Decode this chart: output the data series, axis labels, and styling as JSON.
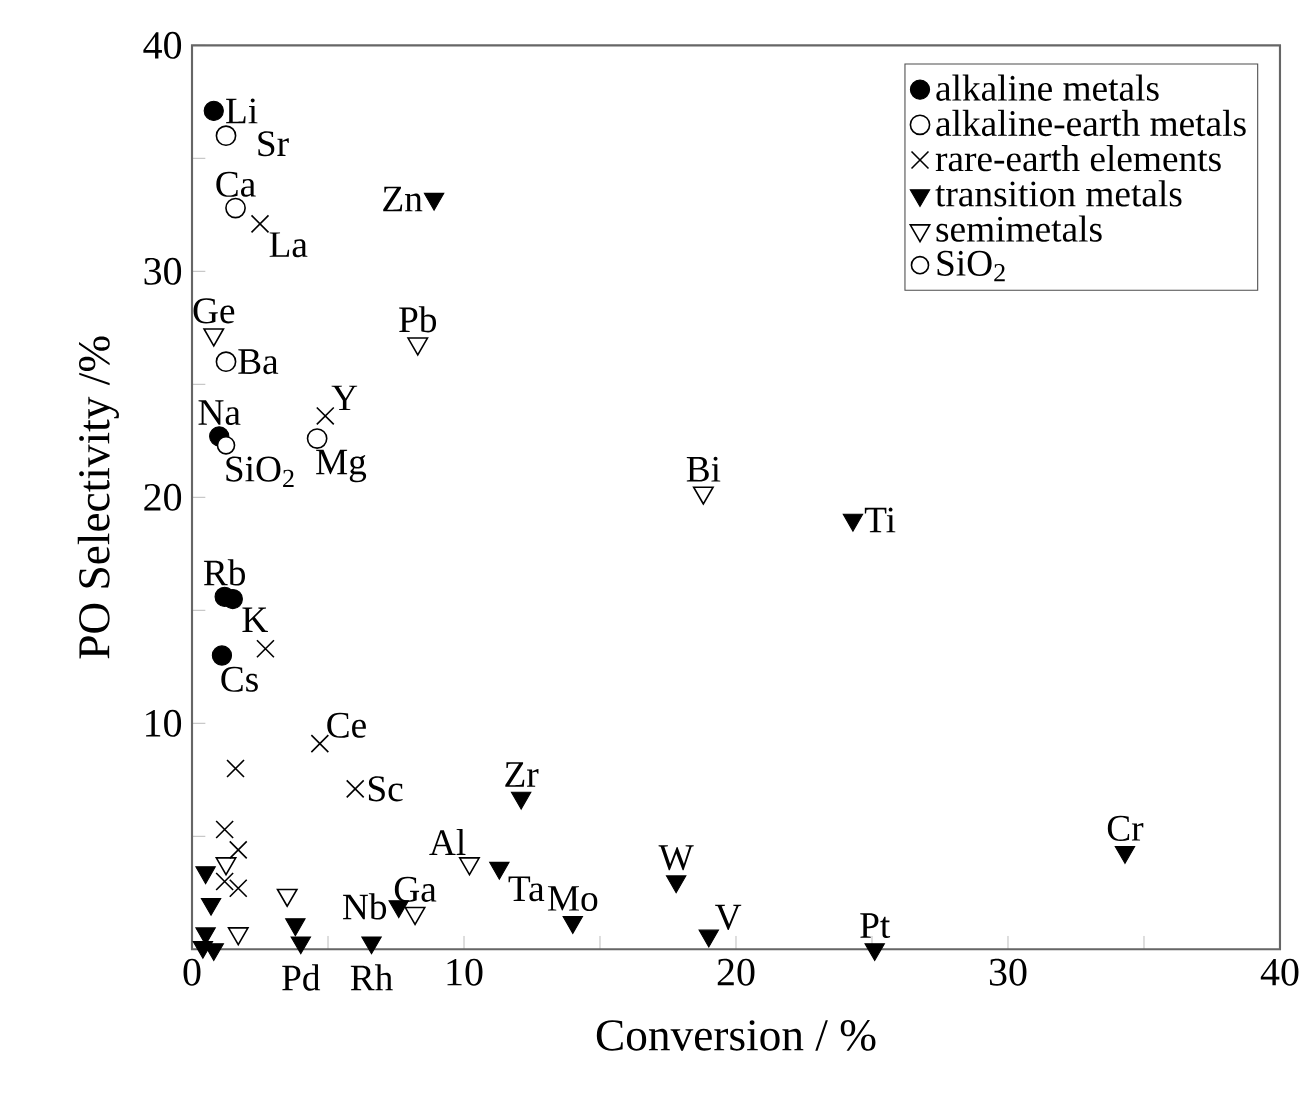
{
  "chart_data": {
    "type": "scatter",
    "xlabel": "Conversion / %",
    "ylabel": "PO Selectivity /%",
    "xlim": [
      0,
      40
    ],
    "ylim": [
      0,
      40
    ],
    "xticks": [
      0,
      {
        "value": 5,
        "label": null
      },
      10,
      {
        "value": 15,
        "label": null
      },
      20,
      {
        "value": 25,
        "label": null
      },
      30,
      {
        "value": 35,
        "label": null
      },
      40
    ],
    "yticks": [
      {
        "value": 5,
        "label": null
      },
      10,
      {
        "value": 15,
        "label": null
      },
      20,
      {
        "value": 25,
        "label": null
      },
      30,
      {
        "value": 35,
        "label": null
      },
      40
    ],
    "legend": "top right",
    "grid": false,
    "series": [
      {
        "name": "alkaline metals",
        "color": "#000000",
        "marker": "circle",
        "x": [
          0.8,
          1.0,
          1.2,
          1.5,
          1.1
        ],
        "values": [
          37.1,
          22.7,
          15.6,
          15.5,
          13.0
        ]
      },
      {
        "name": "alkaline-earth metals",
        "color": "#000000",
        "marker": "circle",
        "x": [
          1.25,
          1.6,
          1.25,
          4.6
        ],
        "values": [
          36.0,
          32.8,
          26.0,
          22.6
        ]
      },
      {
        "name": "rare-earth elements",
        "color": "#000000",
        "marker": "cross",
        "x": [
          2.5,
          4.9,
          2.7,
          4.7,
          6.0,
          1.6,
          1.2,
          1.7,
          1.2,
          1.7
        ],
        "values": [
          32.1,
          23.6,
          13.3,
          9.1,
          7.1,
          8.0,
          5.3,
          4.4,
          3.0,
          2.7
        ]
      },
      {
        "name": "transition metals",
        "color": "#000000",
        "marker": "triangle",
        "x": [
          8.9,
          24.3,
          12.1,
          11.3,
          7.6,
          14.0,
          17.8,
          19.0,
          25.1,
          34.3,
          6.6,
          3.8,
          4.0,
          0.5,
          0.7,
          0.5,
          0.8,
          0.4
        ],
        "values": [
          33.2,
          19.0,
          6.7,
          3.6,
          1.9,
          1.2,
          3.0,
          0.6,
          0.0,
          4.3,
          0.3,
          1.1,
          0.3,
          3.4,
          2.0,
          0.7,
          0.0,
          0.1
        ]
      },
      {
        "name": "semimetals",
        "color": "#000000",
        "marker": "triangle",
        "x": [
          0.8,
          8.3,
          18.8,
          10.2,
          8.2,
          3.5,
          1.25,
          1.7
        ],
        "values": [
          27.2,
          26.8,
          20.2,
          3.8,
          1.6,
          2.4,
          3.8,
          0.7
        ]
      },
      {
        "name": "SiO$_{2}$",
        "color": "#000000",
        "marker": "circle",
        "x": [
          1.25
        ],
        "values": [
          22.3
        ]
      }
    ],
    "annotations": [
      {
        "text": "Li",
        "x": 0.8,
        "y": 37.1
      },
      {
        "text": "Sr",
        "x": 1.25,
        "y": 36.0
      },
      {
        "text": "Ca",
        "x": 1.6,
        "y": 32.8
      },
      {
        "text": "La",
        "x": 2.5,
        "y": 32.1
      },
      {
        "text": "Ge",
        "x": 0.8,
        "y": 27.2
      },
      {
        "text": "Ba",
        "x": 1.25,
        "y": 26.0
      },
      {
        "text": "Na",
        "x": 1.0,
        "y": 22.7
      },
      {
        "text": "SiO$_{2}$",
        "x": 1.25,
        "y": 22.3
      },
      {
        "text": "Y",
        "x": 4.9,
        "y": 23.6
      },
      {
        "text": "Mg",
        "x": 4.6,
        "y": 22.6
      },
      {
        "text": "Zn",
        "x": 8.9,
        "y": 33.2
      },
      {
        "text": "Pb",
        "x": 8.3,
        "y": 26.8
      },
      {
        "text": "Bi",
        "x": 18.8,
        "y": 20.2
      },
      {
        "text": "Ti",
        "x": 24.3,
        "y": 19.0
      },
      {
        "text": "Rb",
        "x": 1.2,
        "y": 15.6
      },
      {
        "text": "K",
        "x": 1.5,
        "y": 15.5
      },
      {
        "text": "Cs",
        "x": 1.1,
        "y": 13.0
      },
      {
        "text": "Ce",
        "x": 4.7,
        "y": 9.1
      },
      {
        "text": "Sc",
        "x": 6.0,
        "y": 7.1
      },
      {
        "text": "Zr",
        "x": 12.1,
        "y": 6.7
      },
      {
        "text": "Al",
        "x": 10.2,
        "y": 3.8
      },
      {
        "text": "Ta",
        "x": 11.3,
        "y": 3.6
      },
      {
        "text": "W",
        "x": 17.8,
        "y": 3.0
      },
      {
        "text": "Mo",
        "x": 14.0,
        "y": 1.2
      },
      {
        "text": "V",
        "x": 19.0,
        "y": 0.6
      },
      {
        "text": "Pt",
        "x": 25.1,
        "y": 0.0
      },
      {
        "text": "Cr",
        "x": 34.3,
        "y": 4.3
      },
      {
        "text": "Nb",
        "x": 7.6,
        "y": 1.9
      },
      {
        "text": "Ga",
        "x": 8.2,
        "y": 1.6
      },
      {
        "text": "Pd",
        "x": 4.0,
        "y": 0.3
      },
      {
        "text": "Rh",
        "x": 6.6,
        "y": 0.3
      }
    ]
  }
}
